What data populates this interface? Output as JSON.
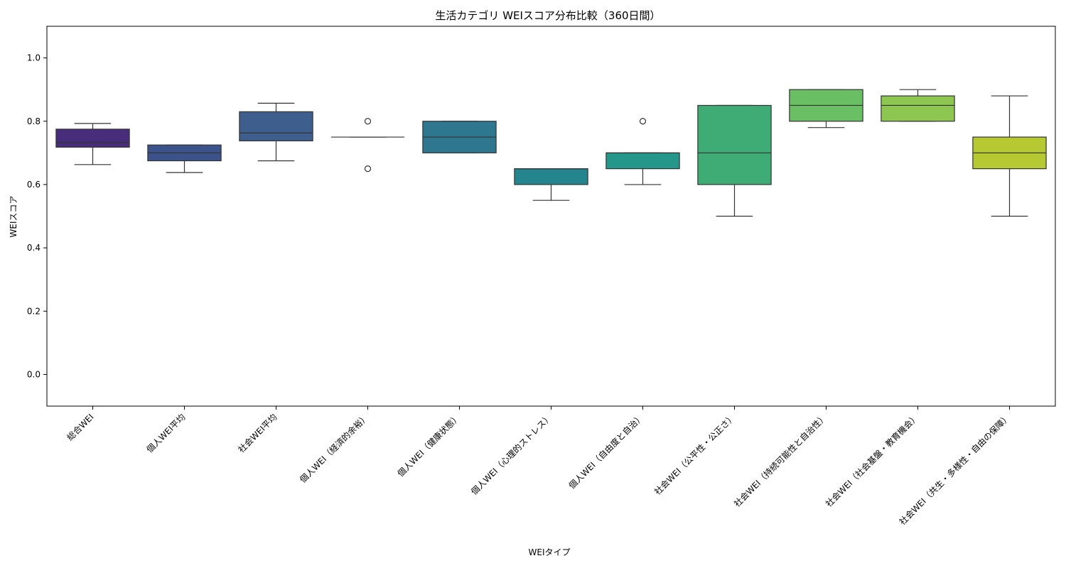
{
  "chart_data": {
    "type": "boxplot",
    "title": "生活カテゴリ WEIスコア分布比較（360日間）",
    "xlabel": "WEIタイプ",
    "ylabel": "WEIスコア",
    "ylim": [
      -0.1,
      1.1
    ],
    "yticks": [
      "0.0",
      "0.2",
      "0.4",
      "0.6",
      "0.8",
      "1.0"
    ],
    "ytick_values": [
      0.0,
      0.2,
      0.4,
      0.6,
      0.8,
      1.0
    ],
    "grid": false,
    "categories": [
      "総合WEI",
      "個人WEI平均",
      "社会WEI平均",
      "個人WEI（経済的余裕）",
      "個人WEI（健康状態）",
      "個人WEI（心理的ストレス）",
      "個人WEI（自由度と自治）",
      "社会WEI（公平性・公正さ）",
      "社会WEI（持続可能性と自治性）",
      "社会WEI（社会基盤・教育機会）",
      "社会WEI（共生・多様性・自由の保障）"
    ],
    "boxes": [
      {
        "whisker_low": 0.663,
        "q1": 0.718,
        "median": 0.733,
        "q3": 0.775,
        "whisker_high": 0.793,
        "outliers": [],
        "color": "#472d7b"
      },
      {
        "whisker_low": 0.638,
        "q1": 0.675,
        "median": 0.7,
        "q3": 0.725,
        "whisker_high": 0.725,
        "outliers": [],
        "color": "#3b528b"
      },
      {
        "whisker_low": 0.675,
        "q1": 0.738,
        "median": 0.763,
        "q3": 0.83,
        "whisker_high": 0.857,
        "outliers": [],
        "color": "#3e5f8d"
      },
      {
        "whisker_low": 0.75,
        "q1": 0.75,
        "median": 0.75,
        "q3": 0.75,
        "whisker_high": 0.75,
        "outliers": [
          0.8,
          0.65
        ],
        "color": "#31688e"
      },
      {
        "whisker_low": 0.7,
        "q1": 0.7,
        "median": 0.75,
        "q3": 0.8,
        "whisker_high": 0.8,
        "outliers": [],
        "color": "#2f778e"
      },
      {
        "whisker_low": 0.55,
        "q1": 0.6,
        "median": 0.65,
        "q3": 0.65,
        "whisker_high": 0.65,
        "outliers": [],
        "color": "#25858e"
      },
      {
        "whisker_low": 0.6,
        "q1": 0.65,
        "median": 0.7,
        "q3": 0.7,
        "whisker_high": 0.7,
        "outliers": [
          0.8
        ],
        "color": "#24978a"
      },
      {
        "whisker_low": 0.5,
        "q1": 0.6,
        "median": 0.7,
        "q3": 0.85,
        "whisker_high": 0.85,
        "outliers": [],
        "color": "#3fab75"
      },
      {
        "whisker_low": 0.78,
        "q1": 0.8,
        "median": 0.85,
        "q3": 0.9,
        "whisker_high": 0.9,
        "outliers": [],
        "color": "#6abf64"
      },
      {
        "whisker_low": 0.8,
        "q1": 0.8,
        "median": 0.85,
        "q3": 0.88,
        "whisker_high": 0.9,
        "outliers": [],
        "color": "#8dc651"
      },
      {
        "whisker_low": 0.5,
        "q1": 0.65,
        "median": 0.7,
        "q3": 0.75,
        "whisker_high": 0.88,
        "outliers": [],
        "color": "#b6c932"
      }
    ]
  }
}
